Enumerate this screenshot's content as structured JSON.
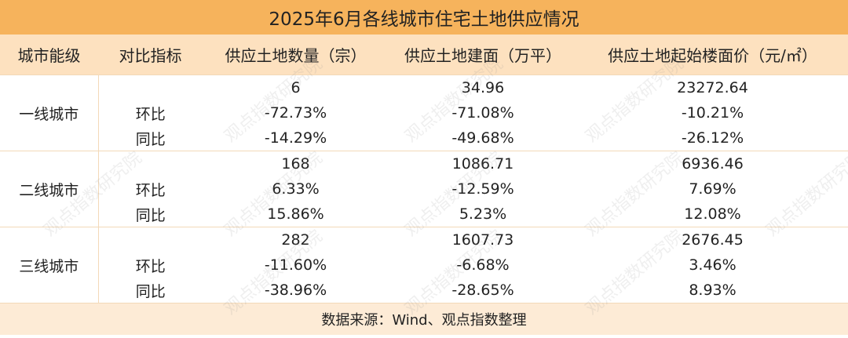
{
  "title": "2025年6月各线城市住宅土地供应情况",
  "table": {
    "header": [
      "城市能级",
      "对比指标",
      "供应土地数量（宗）",
      "供应土地建面（万平）",
      "供应土地起始楼面价（元/㎡）"
    ],
    "groups": [
      {
        "name": "一线城市",
        "values": [
          "6",
          "34.96",
          "23272.64"
        ],
        "changes": [
          {
            "label": "环比",
            "values": [
              "-72.73%",
              "-71.08%",
              "-10.21%"
            ]
          },
          {
            "label": "同比",
            "values": [
              "-14.29%",
              "-49.68%",
              "-26.12%"
            ]
          }
        ]
      },
      {
        "name": "二线城市",
        "values": [
          "168",
          "1086.71",
          "6936.46"
        ],
        "changes": [
          {
            "label": "环比",
            "values": [
              "6.33%",
              "-12.59%",
              "7.69%"
            ]
          },
          {
            "label": "同比",
            "values": [
              "15.86%",
              "5.23%",
              "12.08%"
            ]
          }
        ]
      },
      {
        "name": "三线城市",
        "values": [
          "282",
          "1607.73",
          "2676.45"
        ],
        "changes": [
          {
            "label": "环比",
            "values": [
              "-11.60%",
              "-6.68%",
              "3.46%"
            ]
          },
          {
            "label": "同比",
            "values": [
              "-38.96%",
              "-28.65%",
              "8.93%"
            ]
          }
        ]
      }
    ]
  },
  "source": "数据来源：Wind、观点指数整理",
  "watermark": "观点指数研究院"
}
